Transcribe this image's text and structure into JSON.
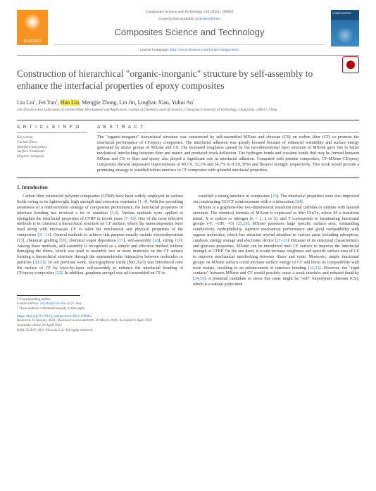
{
  "header": {
    "journal_ref": "Composites Science and Technology 210 (2021) 108802",
    "contents_line_pre": "Contents lists available at ",
    "contents_line_link": "ScienceDirect",
    "journal_title": "Composites Science and Technology",
    "homepage_pre": "journal homepage: ",
    "homepage_link": "http://www.elsevier.com/locate/compscitech",
    "elsevier": "ELSEVIER",
    "cover": "COMPOSITES"
  },
  "title": "Construction of hierarchical \"organic-inorganic\" structure by self-assembly to enhance the interfacial properties of epoxy composites",
  "authors": {
    "a1": "Liu Liu",
    "s1": "1",
    "a2": "Fei Yan",
    "s2": "1",
    "a3": "Hao Liu",
    "a4": "Mengjie Zhang",
    "a5": "Lin Jin",
    "a6": "Linghan Xiao",
    "a7": "Yuhui Ao",
    "corr": "*"
  },
  "affiliation": "Jilin Province Key Laboratory of Carbon Fiber Development and Application, College of Chemistry and Life Science, Changchun University of Technology, Changchun, 130012, China",
  "sections": {
    "ai": "A R T I C L E  I N F O",
    "ab": "A B S T R A C T",
    "kw_head": "Keywords:",
    "kw": "Carbon fibers\nInterface/interphase\nSurface treatments\nOrganic-inorganic"
  },
  "abstract": "The \"organic-inorganic\" hierarchical structure was constructed by self-assembled MXene and chitosan (CS) on carbon fiber (CF) to promote the interfacial performance of CF/epoxy composites. The interfacial adhesion was greatly boosted because of enhanced wettability and surface energy generated by active groups of MXene and CS. The increased roughness caused by the two-dimensional layer structure of MXene gave rise to better mechanical interlocking between fiber and matrix and produced crack deflection. The hydrogen bonds and covalent bonds that may be formed between MXene and CS or fiber and epoxy also played a significant role in interfacial adhesion. Compared with pristine composites, CF-MXene-CS/epoxy composites showed impressive improvements of 49.1%, 52.1% and 54.7% in ILSS, IFSS and flexural strength, respectively. This work would provide a promising strategy to establish robust interface in CF composites with splendid interfacial properties.",
  "intro_head": "1. Introduction",
  "col1": "Carbon fiber reinforced polymer composites (CFRP) have been widely employed in various fields owing to its lightweight, high strength and corrosion resistance [1–4]. With the prevailing awareness of a reinforcement strategy of composites performance, the interfacial properties or interface bonding has received a lot of attention [5,6]. Various methods were applied to strengthen the interfacial properties of CFRP in recent years [7–10]. One of the most effective methods is to construct a hierarchical structure on CF surface, where the nanocomposites were used along with microscale CF to tailor the mechanical and physical properties of the composites [11–14]. General methods to achieve this purpose usually include electrodeposition [15], chemical grafting [16], chemical vapor deposition [17], self-assembly [18], sizing [19]. Among these methods, self-assembly is recognized as a simple and effective method without damaging the fibers, which was used to assemble two or more materials on the CF surface forming a hierarchical structure through the supramolecular interaction between molecules or particles [20,21]. In our previous work, silica/graphene oxide (SiO₂/GO) was introduced onto the surface of CF by layer-by-layer self-assembly to enhance the interfacial bonding of CF/epoxy composites [22]. In addition, graphene aerogel was self-assembled on CF to",
  "col2a": "establish a strong interface in composites [23]. The interfacial properties were also improved via constructing GO/CF reinforcement with π-π interaction [24].",
  "col2b": "MXene is a graphene-like two-dimensional transition metal carbides or nitrides with layered structure. The chemical formula of MXene is expressed as Mn+1XnTx, where M is transition metal, X is carbon or nitrogen (n = 1, 2 or 3), and T corresponds to terminating functional groups (-F, –OH, –O) [25,26]. MXene possesses large specific surface area, outstanding conductivity, hydrophilicity, superior mechanical performance and good compatibility with organic molecules, which has attracted myriad attention in various areas including adsorption, catalysis, energy storage and electronic device [27–31]. Because of its structural characteristics and glorious properties, MXene can be introduced onto CF surface to improve the interfacial strength of CFRP. On the one hand, it would increase roughness and specific surface area of CF to improve mechanical interlocking between fibers and resin. Moreover, ample functional groups on MXene surface could increase surface energy of CF and boost its compatibility with resin matrix, resulting in an enhancement of interface bonding [32,33]. However, the \"rigid contacts\" between MXene and CF would possibly cause a weak interface and reduced ductility [34,35]. A potential candidate to stress this issue might be \"soft\" biopolymer chitosan (CS), which is a natural polycation",
  "footer": {
    "corr": "* Corresponding author.",
    "email_pre": "E-mail address: ",
    "email": "aoyuhu@ccut.edu.cn",
    "email_post": " (Y. Ao).",
    "equal": "¹ These authors contributed equally to this paper.",
    "doi": "https://doi.org/10.1016/j.compscitech.2021.108802",
    "received": "Received 22 January 2021; Received in revised form 26 March 2021; Accepted 6 April 2021",
    "avail": "Available online 20 April 2021",
    "copy": "0266-3538/© 2021 Elsevier Ltd. All rights reserved."
  }
}
